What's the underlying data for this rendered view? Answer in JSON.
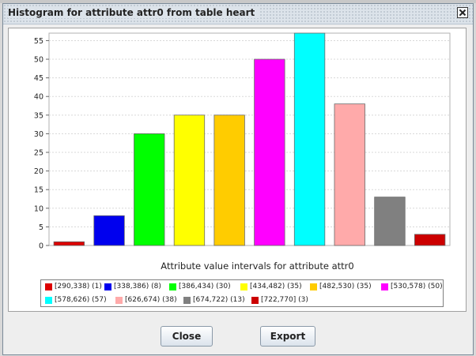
{
  "window": {
    "title": "Histogram for attribute attr0 from table heart"
  },
  "buttons": {
    "close_label": "Close",
    "export_label": "Export"
  },
  "chart_data": {
    "type": "bar",
    "xlabel": "Attribute value intervals for attribute attr0",
    "ylabel": "",
    "ylim": [
      0,
      57
    ],
    "yticks": [
      0,
      5,
      10,
      15,
      20,
      25,
      30,
      35,
      40,
      45,
      50,
      55
    ],
    "grid": true,
    "legend_placement": "bottom",
    "categories": [
      "[290,338) (1)",
      "[338,386) (8)",
      "[386,434) (30)",
      "[434,482) (35)",
      "[482,530) (35)",
      "[530,578) (50)",
      "[578,626) (57)",
      "[626,674) (38)",
      "[674,722) (13)",
      "[722,770] (3)"
    ],
    "values": [
      1,
      8,
      30,
      35,
      35,
      50,
      57,
      38,
      13,
      3
    ],
    "colors": [
      "#dd0000",
      "#0000ee",
      "#00ff00",
      "#ffff00",
      "#ffcc00",
      "#ff00ff",
      "#00ffff",
      "#ffaaaa",
      "#808080",
      "#cc0000"
    ]
  }
}
